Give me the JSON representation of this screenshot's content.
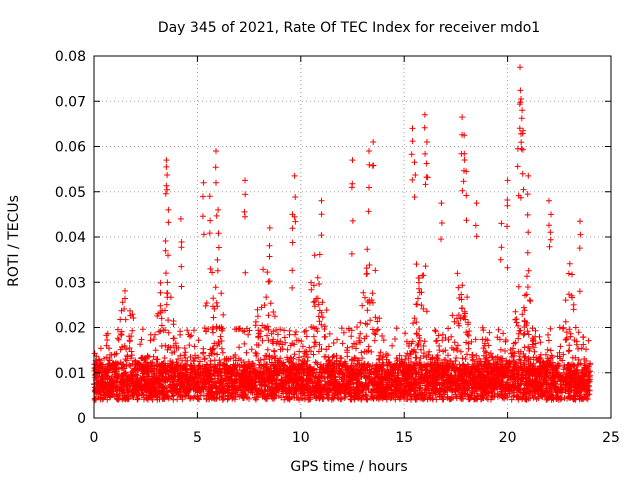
{
  "chart_data": {
    "type": "scatter",
    "title": "Day 345 of 2021, Rate Of TEC Index for receiver mdo1",
    "xlabel": "GPS time / hours",
    "ylabel": "ROTI / TECUs",
    "xlim": [
      0,
      25
    ],
    "ylim": [
      0,
      0.08
    ],
    "xticks": [
      0,
      5,
      10,
      15,
      20,
      25
    ],
    "yticks": [
      0,
      0.01,
      0.02,
      0.03,
      0.04,
      0.05,
      0.06,
      0.07,
      0.08
    ],
    "grid": true,
    "marker": "+",
    "color": "#ff0000",
    "data_span_hours": [
      0,
      24
    ],
    "notable_points": [
      {
        "x": 3.5,
        "y": 0.057
      },
      {
        "x": 3.5,
        "y": 0.0555
      },
      {
        "x": 3.6,
        "y": 0.046
      },
      {
        "x": 4.2,
        "y": 0.044
      },
      {
        "x": 5.3,
        "y": 0.052
      },
      {
        "x": 5.6,
        "y": 0.049
      },
      {
        "x": 5.9,
        "y": 0.059
      },
      {
        "x": 6.0,
        "y": 0.046
      },
      {
        "x": 7.3,
        "y": 0.0525
      },
      {
        "x": 8.5,
        "y": 0.042
      },
      {
        "x": 9.6,
        "y": 0.045
      },
      {
        "x": 9.7,
        "y": 0.0535
      },
      {
        "x": 11.0,
        "y": 0.048
      },
      {
        "x": 12.5,
        "y": 0.057
      },
      {
        "x": 13.5,
        "y": 0.061
      },
      {
        "x": 13.3,
        "y": 0.059
      },
      {
        "x": 15.4,
        "y": 0.064
      },
      {
        "x": 15.5,
        "y": 0.0565
      },
      {
        "x": 16.0,
        "y": 0.067
      },
      {
        "x": 16.1,
        "y": 0.061
      },
      {
        "x": 16.8,
        "y": 0.0475
      },
      {
        "x": 17.8,
        "y": 0.0665
      },
      {
        "x": 17.9,
        "y": 0.0625
      },
      {
        "x": 18.0,
        "y": 0.0545
      },
      {
        "x": 18.5,
        "y": 0.0475
      },
      {
        "x": 19.7,
        "y": 0.043
      },
      {
        "x": 20.0,
        "y": 0.0525
      },
      {
        "x": 20.5,
        "y": 0.0595
      },
      {
        "x": 20.6,
        "y": 0.0775
      },
      {
        "x": 20.65,
        "y": 0.0705
      },
      {
        "x": 20.7,
        "y": 0.068
      },
      {
        "x": 20.75,
        "y": 0.0635
      },
      {
        "x": 21.0,
        "y": 0.0535
      },
      {
        "x": 22.0,
        "y": 0.048
      },
      {
        "x": 22.1,
        "y": 0.045
      },
      {
        "x": 23.5,
        "y": 0.0435
      }
    ],
    "activity_peaks": [
      {
        "x": 1.5,
        "level": 0.025
      },
      {
        "x": 3.5,
        "level": 0.03
      },
      {
        "x": 5.8,
        "level": 0.028
      },
      {
        "x": 8.3,
        "level": 0.026
      },
      {
        "x": 10.8,
        "level": 0.03
      },
      {
        "x": 13.3,
        "level": 0.033
      },
      {
        "x": 15.8,
        "level": 0.03
      },
      {
        "x": 17.8,
        "level": 0.028
      },
      {
        "x": 20.8,
        "level": 0.031
      },
      {
        "x": 23.0,
        "level": 0.027
      }
    ]
  }
}
